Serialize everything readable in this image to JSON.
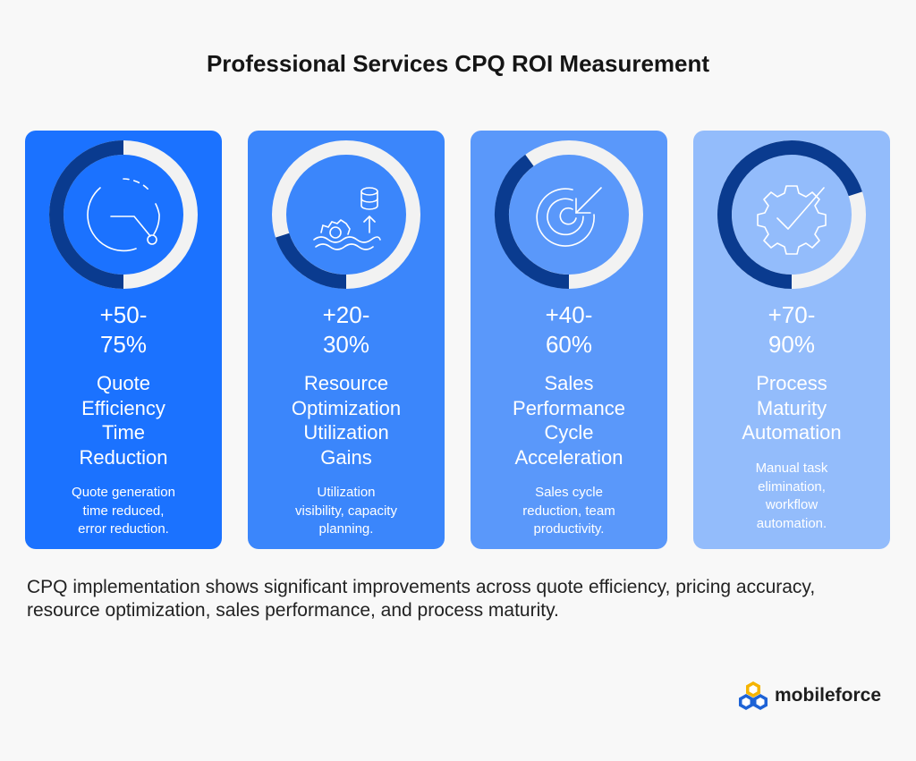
{
  "title": "Professional Services CPQ ROI Measurement",
  "colors": {
    "card1": "#1b72ff",
    "card2": "#3b86fb",
    "card3": "#5a98fa",
    "card4": "#93bcfb",
    "ring_dark": "#0a3b8f",
    "ring_light": "#f2f2f2"
  },
  "cards": [
    {
      "metric_line1": "+50-",
      "metric_line2": "75%",
      "label_line1": "Quote",
      "label_line2": "Efficiency",
      "label_line3": "Time",
      "label_line4": "Reduction",
      "desc_line1": "Quote generation",
      "desc_line2": "time reduced,",
      "desc_line3": "error reduction.",
      "progress": 0.5,
      "icon": "clock-icon"
    },
    {
      "metric_line1": "+20-",
      "metric_line2": "30%",
      "label_line1": "Resource",
      "label_line2": "Optimization",
      "label_line3": "Utilization",
      "label_line4": "Gains",
      "desc_line1": "Utilization",
      "desc_line2": "visibility, capacity",
      "desc_line3": "planning.",
      "progress": 0.2,
      "icon": "resource-gear-database-icon"
    },
    {
      "metric_line1": "+40-",
      "metric_line2": "60%",
      "label_line1": "Sales",
      "label_line2": "Performance",
      "label_line3": "Cycle",
      "label_line4": "Acceleration",
      "desc_line1": "Sales cycle",
      "desc_line2": "reduction, team",
      "desc_line3": "productivity.",
      "progress": 0.4,
      "icon": "target-arrow-icon"
    },
    {
      "metric_line1": "+70-",
      "metric_line2": "90%",
      "label_line1": "Process",
      "label_line2": "Maturity",
      "label_line3": "Automation",
      "desc_line1": "Manual task",
      "desc_line2": "elimination,",
      "desc_line3": "workflow",
      "desc_line4": "automation.",
      "progress": 0.7,
      "icon": "gear-check-icon"
    }
  ],
  "summary": "CPQ implementation shows significant improvements across quote efficiency, pricing accuracy, resource optimization, sales performance, and process maturity.",
  "brand": {
    "name": "mobileforce",
    "icon": "mobileforce-logo-icon"
  }
}
